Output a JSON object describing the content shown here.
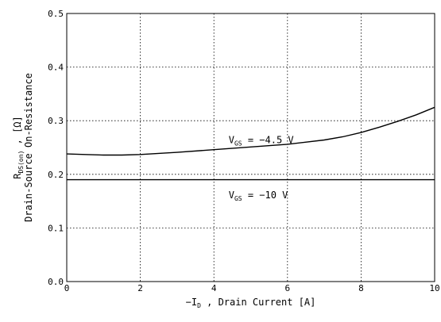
{
  "chart_data": {
    "type": "line",
    "xlabel": {
      "pre": "−I",
      "sub": "D",
      "post": " , Drain Current  [A]"
    },
    "ylabel": {
      "pre": "R",
      "sub": "DS(on)",
      "post": " , [Ω]",
      "line2": "Drain-Source On-Resistance"
    },
    "xlim": [
      0,
      10
    ],
    "ylim": [
      0,
      0.5
    ],
    "x_ticks": [
      0,
      2,
      4,
      6,
      8,
      10
    ],
    "y_ticks": [
      0.0,
      0.1,
      0.2,
      0.3,
      0.4,
      0.5
    ],
    "x_tick_labels": [
      "0",
      "2",
      "4",
      "6",
      "8",
      "10"
    ],
    "y_tick_labels": [
      "0.0",
      "0.1",
      "0.2",
      "0.3",
      "0.4",
      "0.5"
    ],
    "grid": true,
    "series": [
      {
        "label_pre": "V",
        "label_sub": "GS",
        "label_post": " = −4.5 V",
        "label_at": [
          4.4,
          0.258
        ],
        "x": [
          0,
          0.5,
          1,
          1.5,
          2,
          3,
          4,
          5,
          6,
          7,
          7.5,
          8,
          8.5,
          9,
          9.5,
          10
        ],
        "y": [
          0.238,
          0.237,
          0.236,
          0.236,
          0.237,
          0.241,
          0.246,
          0.251,
          0.256,
          0.264,
          0.27,
          0.278,
          0.288,
          0.299,
          0.311,
          0.325
        ]
      },
      {
        "label_pre": "V",
        "label_sub": "GS",
        "label_post": " = −10 V",
        "label_at": [
          4.4,
          0.155
        ],
        "x": [
          0,
          10
        ],
        "y": [
          0.19,
          0.19
        ]
      }
    ]
  }
}
